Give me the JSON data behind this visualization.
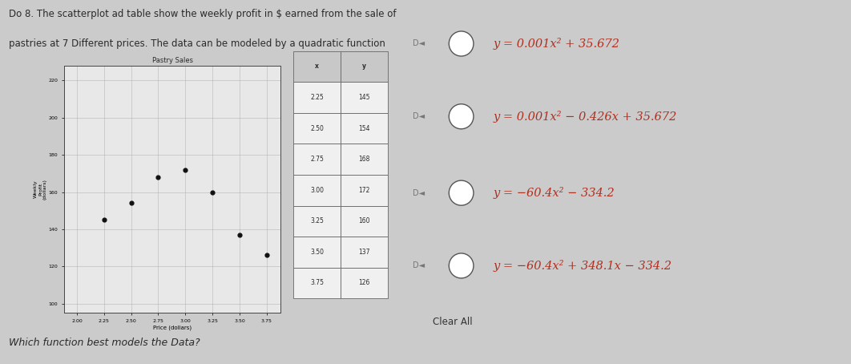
{
  "title_line1": "Do 8. The scatterplot ad table show the weekly profit in $ earned from the sale of",
  "title_line2": "pastries at 7 Different prices. The data can be modeled by a quadratic function",
  "chart_title": "Pastry Sales",
  "xlabel": "Price (dollars)",
  "ylabel": "Weekly\nProfit\n(dollars)",
  "x_ticks": [
    2.0,
    2.25,
    2.5,
    2.75,
    3.0,
    3.25,
    3.5,
    3.75
  ],
  "y_ticks": [
    100,
    120,
    140,
    160,
    180,
    200,
    220
  ],
  "xlim": [
    1.88,
    3.88
  ],
  "ylim": [
    95,
    228
  ],
  "scatter_x": [
    2.25,
    2.5,
    2.75,
    3.0,
    3.25,
    3.5,
    3.75
  ],
  "scatter_y": [
    145,
    154,
    168,
    172,
    160,
    137,
    126
  ],
  "table_headers": [
    "x",
    "y"
  ],
  "table_rows": [
    [
      "2.25",
      "145"
    ],
    [
      "2.50",
      "154"
    ],
    [
      "2.75",
      "168"
    ],
    [
      "3.00",
      "172"
    ],
    [
      "3.25",
      "160"
    ],
    [
      "3.50",
      "137"
    ],
    [
      "3.75",
      "126"
    ]
  ],
  "options": [
    "y = 0.001x² + 35.672",
    "y = 0.001x² − 0.426x + 35.672",
    "y = −60.4x² − 334.2",
    "y = −60.4x² + 348.1x − 334.2"
  ],
  "option_has_box": [
    false,
    false,
    true,
    true
  ],
  "bg_color": "#cccbcb",
  "chart_bg": "#e8e8e8",
  "table_header_bg": "#c8c8c8",
  "table_row_bg": "#f0f0f0",
  "text_color": "#2a2a2a",
  "option_color": "#b03020",
  "bottom_text": "Which function best models the Data?"
}
